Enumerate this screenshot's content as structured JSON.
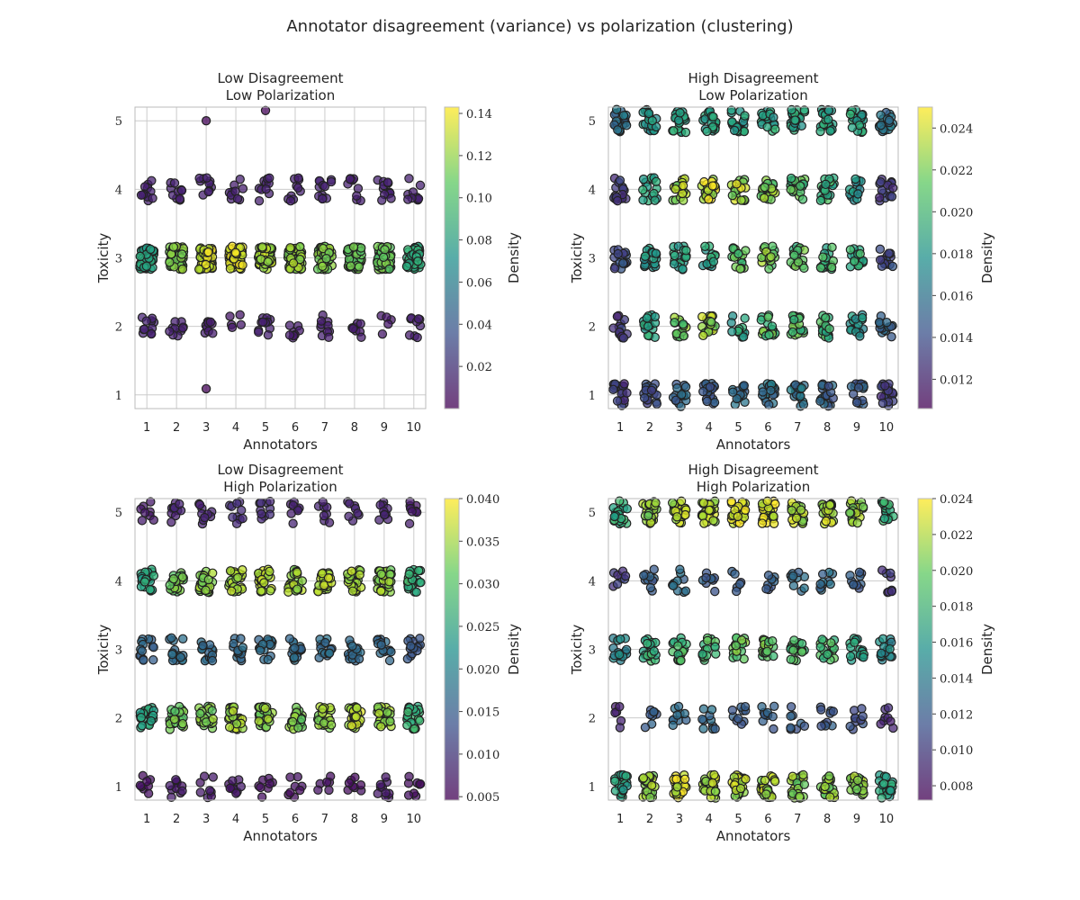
{
  "chart_data": {
    "title": "Annotator disagreement (variance) vs polarization (clustering)",
    "panels": [
      {
        "type": "scatter",
        "title_line1": "Low Disagreement",
        "title_line2": "Low Polarization",
        "xlabel": "Annotators",
        "ylabel": "Toxicity",
        "colorbar_label": "Density",
        "colormap": "viridis",
        "x_ticks": [
          1,
          2,
          3,
          4,
          5,
          6,
          7,
          8,
          9,
          10
        ],
        "y_ticks": [
          1,
          2,
          3,
          4,
          5
        ],
        "xlim": [
          0.6,
          10.4
        ],
        "ylim": [
          0.8,
          5.2
        ],
        "colorbar_range": [
          0.0,
          0.143
        ],
        "colorbar_ticks": [
          "0.02",
          "0.04",
          "0.06",
          "0.08",
          "0.10",
          "0.12",
          "0.14"
        ],
        "levels": [
          {
            "y": 2,
            "per_annotator": [
              12,
              10,
              9,
              5,
              11,
              8,
              10,
              8,
              5,
              9
            ],
            "density": [
              0.014,
              0.013,
              0.012,
              0.009,
              0.013,
              0.011,
              0.012,
              0.011,
              0.009,
              0.012
            ]
          },
          {
            "y": 3,
            "per_annotator": [
              55,
              60,
              60,
              58,
              58,
              58,
              58,
              55,
              55,
              55
            ],
            "density": [
              0.085,
              0.115,
              0.135,
              0.138,
              0.125,
              0.12,
              0.115,
              0.11,
              0.11,
              0.09
            ]
          },
          {
            "y": 4,
            "per_annotator": [
              11,
              10,
              10,
              10,
              10,
              10,
              12,
              9,
              12,
              10
            ],
            "density": [
              0.013,
              0.013,
              0.013,
              0.013,
              0.013,
              0.013,
              0.014,
              0.012,
              0.014,
              0.013
            ]
          }
        ],
        "outliers": [
          {
            "annotator": 3,
            "y": 5.0,
            "density": 0.002
          },
          {
            "annotator": 5,
            "y": 5.15,
            "density": 0.002
          },
          {
            "annotator": 3,
            "y": 1.09,
            "density": 0.002
          }
        ]
      },
      {
        "type": "scatter",
        "title_line1": "High Disagreement",
        "title_line2": "Low Polarization",
        "xlabel": "Annotators",
        "ylabel": "Toxicity",
        "colorbar_label": "Density",
        "colormap": "viridis",
        "x_ticks": [
          1,
          2,
          3,
          4,
          5,
          6,
          7,
          8,
          9,
          10
        ],
        "y_ticks": [
          1,
          2,
          3,
          4,
          5
        ],
        "xlim": [
          0.6,
          10.4
        ],
        "ylim": [
          0.8,
          5.2
        ],
        "colorbar_range": [
          0.0106,
          0.025
        ],
        "colorbar_ticks": [
          "0.012",
          "0.014",
          "0.016",
          "0.018",
          "0.020",
          "0.022",
          "0.024"
        ],
        "levels": [
          {
            "y": 1,
            "per_annotator": [
              18,
              18,
              16,
              18,
              16,
              18,
              18,
              18,
              16,
              18
            ],
            "density": [
              0.013,
              0.014,
              0.015,
              0.015,
              0.016,
              0.016,
              0.016,
              0.015,
              0.015,
              0.013
            ]
          },
          {
            "y": 2,
            "per_annotator": [
              14,
              18,
              18,
              20,
              12,
              18,
              18,
              18,
              16,
              14
            ],
            "density": [
              0.013,
              0.019,
              0.022,
              0.023,
              0.019,
              0.021,
              0.021,
              0.02,
              0.018,
              0.015
            ]
          },
          {
            "y": 3,
            "per_annotator": [
              16,
              18,
              18,
              18,
              18,
              18,
              18,
              18,
              18,
              14
            ],
            "density": [
              0.014,
              0.018,
              0.019,
              0.019,
              0.021,
              0.022,
              0.021,
              0.02,
              0.02,
              0.014
            ]
          },
          {
            "y": 4,
            "per_annotator": [
              16,
              16,
              20,
              22,
              20,
              20,
              20,
              20,
              14,
              16
            ],
            "density": [
              0.013,
              0.019,
              0.023,
              0.024,
              0.023,
              0.022,
              0.021,
              0.02,
              0.018,
              0.013
            ]
          },
          {
            "y": 5,
            "per_annotator": [
              20,
              20,
              20,
              20,
              20,
              20,
              20,
              20,
              20,
              20
            ],
            "density": [
              0.016,
              0.018,
              0.019,
              0.019,
              0.019,
              0.019,
              0.019,
              0.019,
              0.019,
              0.016
            ]
          }
        ],
        "outliers": []
      },
      {
        "type": "scatter",
        "title_line1": "Low Disagreement",
        "title_line2": "High Polarization",
        "xlabel": "Annotators",
        "ylabel": "Toxicity",
        "colorbar_label": "Density",
        "colormap": "viridis",
        "x_ticks": [
          1,
          2,
          3,
          4,
          5,
          6,
          7,
          8,
          9,
          10
        ],
        "y_ticks": [
          1,
          2,
          3,
          4,
          5
        ],
        "xlim": [
          0.6,
          10.4
        ],
        "ylim": [
          0.8,
          5.2
        ],
        "colorbar_range": [
          0.0046,
          0.04
        ],
        "colorbar_ticks": [
          "0.005",
          "0.010",
          "0.015",
          "0.020",
          "0.025",
          "0.030",
          "0.035",
          "0.040"
        ],
        "levels": [
          {
            "y": 1,
            "per_annotator": [
              8,
              10,
              8,
              10,
              8,
              8,
              6,
              8,
              10,
              8
            ],
            "density": [
              0.006,
              0.007,
              0.007,
              0.007,
              0.006,
              0.006,
              0.006,
              0.006,
              0.007,
              0.006
            ]
          },
          {
            "y": 2,
            "per_annotator": [
              22,
              24,
              24,
              26,
              24,
              24,
              24,
              26,
              24,
              22
            ],
            "density": [
              0.026,
              0.032,
              0.033,
              0.035,
              0.034,
              0.033,
              0.034,
              0.036,
              0.034,
              0.028
            ]
          },
          {
            "y": 3,
            "per_annotator": [
              14,
              16,
              16,
              14,
              16,
              16,
              14,
              16,
              14,
              14
            ],
            "density": [
              0.016,
              0.017,
              0.017,
              0.017,
              0.017,
              0.017,
              0.017,
              0.017,
              0.016,
              0.014
            ]
          },
          {
            "y": 4,
            "per_annotator": [
              22,
              24,
              26,
              26,
              26,
              26,
              26,
              26,
              26,
              24
            ],
            "density": [
              0.026,
              0.032,
              0.034,
              0.035,
              0.036,
              0.035,
              0.036,
              0.035,
              0.034,
              0.028
            ]
          },
          {
            "y": 5,
            "per_annotator": [
              8,
              10,
              10,
              10,
              10,
              8,
              8,
              8,
              10,
              8
            ],
            "density": [
              0.007,
              0.008,
              0.008,
              0.009,
              0.009,
              0.008,
              0.008,
              0.008,
              0.008,
              0.007
            ]
          }
        ],
        "outliers": []
      },
      {
        "type": "scatter",
        "title_line1": "High Disagreement",
        "title_line2": "High Polarization",
        "xlabel": "Annotators",
        "ylabel": "Toxicity",
        "colorbar_label": "Density",
        "colormap": "viridis",
        "x_ticks": [
          1,
          2,
          3,
          4,
          5,
          6,
          7,
          8,
          9,
          10
        ],
        "y_ticks": [
          1,
          2,
          3,
          4,
          5
        ],
        "xlim": [
          0.6,
          10.4
        ],
        "ylim": [
          0.8,
          5.2
        ],
        "colorbar_range": [
          0.0072,
          0.024
        ],
        "colorbar_ticks": [
          "0.008",
          "0.010",
          "0.012",
          "0.014",
          "0.016",
          "0.018",
          "0.020",
          "0.022",
          "0.024"
        ],
        "levels": [
          {
            "y": 1,
            "per_annotator": [
              20,
              24,
              24,
              24,
              24,
              24,
              24,
              22,
              22,
              20
            ],
            "density": [
              0.017,
              0.021,
              0.023,
              0.022,
              0.022,
              0.022,
              0.021,
              0.021,
              0.021,
              0.017
            ]
          },
          {
            "y": 2,
            "per_annotator": [
              6,
              8,
              10,
              10,
              10,
              10,
              8,
              10,
              10,
              8
            ],
            "density": [
              0.009,
              0.012,
              0.013,
              0.013,
              0.012,
              0.012,
              0.012,
              0.012,
              0.011,
              0.009
            ]
          },
          {
            "y": 3,
            "per_annotator": [
              16,
              18,
              18,
              16,
              18,
              18,
              18,
              18,
              16,
              16
            ],
            "density": [
              0.015,
              0.018,
              0.019,
              0.019,
              0.02,
              0.02,
              0.019,
              0.019,
              0.017,
              0.015
            ]
          },
          {
            "y": 4,
            "per_annotator": [
              8,
              10,
              10,
              8,
              6,
              8,
              10,
              10,
              10,
              8
            ],
            "density": [
              0.01,
              0.012,
              0.013,
              0.012,
              0.012,
              0.012,
              0.013,
              0.013,
              0.012,
              0.01
            ]
          },
          {
            "y": 5,
            "per_annotator": [
              20,
              24,
              24,
              24,
              24,
              24,
              24,
              22,
              22,
              20
            ],
            "density": [
              0.018,
              0.021,
              0.022,
              0.022,
              0.023,
              0.023,
              0.022,
              0.022,
              0.021,
              0.018
            ]
          }
        ],
        "outliers": []
      }
    ]
  }
}
